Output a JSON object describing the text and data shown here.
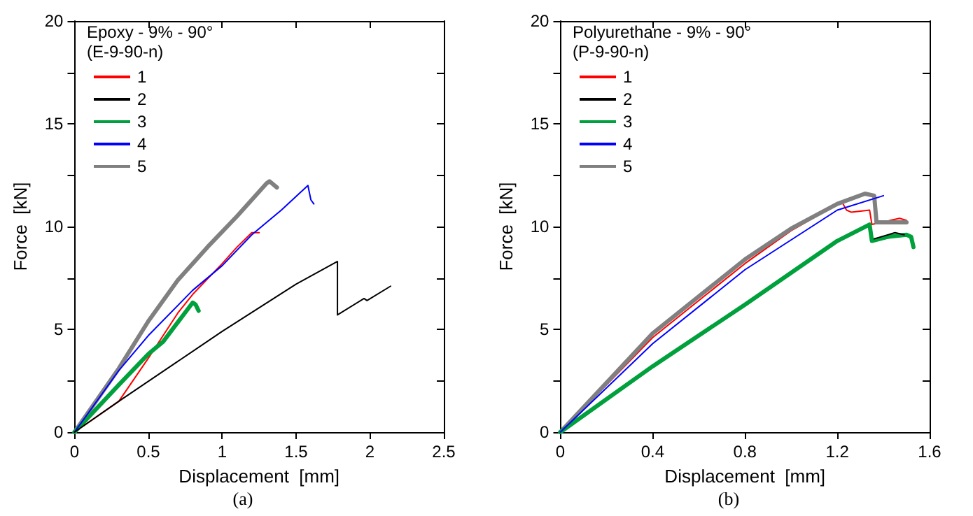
{
  "chart_data": [
    {
      "type": "line",
      "legend_title": "Epoxy - 9% - 90°\n(E-9-90-n)",
      "xlabel": "Displacement  [mm]",
      "ylabel": "Force  [kN]",
      "annotations": [
        "(a)"
      ],
      "legend": "top left",
      "grid": false,
      "marker": "none",
      "line_style": "solid",
      "xlim": [
        0,
        2.5
      ],
      "xticks": [
        0,
        0.5,
        1,
        1.5,
        2,
        2.5
      ],
      "ylim": [
        0,
        20
      ],
      "yticks": [
        0,
        {
          "value": 2.5,
          "label": null
        },
        5,
        {
          "value": 7.5,
          "label": null
        },
        10,
        {
          "value": 12.5,
          "label": null
        },
        15,
        {
          "value": 17.5,
          "label": null
        },
        20
      ],
      "series": [
        {
          "name": "1",
          "color": "#ff0000",
          "x": [
            0,
            0.3,
            0.5,
            0.7,
            0.8,
            1.0,
            1.1,
            1.2,
            1.25
          ],
          "values": [
            0,
            1.5,
            3.6,
            5.8,
            6.7,
            8.2,
            9.0,
            9.7,
            9.7
          ]
        },
        {
          "name": "2",
          "color": "#000000",
          "x": [
            0,
            0.3,
            1.0,
            1.5,
            1.78,
            1.78,
            1.96,
            1.98,
            2.14
          ],
          "values": [
            0,
            1.5,
            4.9,
            7.2,
            8.3,
            5.7,
            6.5,
            6.4,
            7.1
          ]
        },
        {
          "name": "3",
          "color": "#00a03c",
          "x": [
            0,
            0.3,
            0.5,
            0.6,
            0.8,
            0.82,
            0.84
          ],
          "values": [
            0,
            2.3,
            3.8,
            4.4,
            6.3,
            6.2,
            5.9
          ]
        },
        {
          "name": "4",
          "color": "#0000ff",
          "x": [
            0,
            0.3,
            0.5,
            0.8,
            1.0,
            1.2,
            1.4,
            1.58,
            1.6,
            1.62
          ],
          "values": [
            0,
            3.0,
            4.7,
            6.9,
            8.1,
            9.6,
            10.8,
            12.0,
            11.3,
            11.1
          ]
        },
        {
          "name": "5",
          "color": "#808080",
          "x": [
            0,
            0.3,
            0.5,
            0.7,
            0.9,
            1.1,
            1.3,
            1.32,
            1.37
          ],
          "values": [
            0,
            3.1,
            5.4,
            7.4,
            9.0,
            10.5,
            12.1,
            12.2,
            11.9
          ]
        }
      ]
    },
    {
      "type": "line",
      "legend_title": "Polyurethane - 9% - 90°\n(P-9-90-n)",
      "xlabel": "Displacement  [mm]",
      "ylabel": "Force  [kN]",
      "annotations": [
        "(b)"
      ],
      "legend": "top left",
      "grid": false,
      "marker": "none",
      "line_style": "solid",
      "xlim": [
        0,
        1.6
      ],
      "xticks": [
        0,
        0.4,
        0.8,
        1.2,
        1.6
      ],
      "ylim": [
        0,
        20
      ],
      "yticks": [
        0,
        {
          "value": 2.5,
          "label": null
        },
        5,
        {
          "value": 7.5,
          "label": null
        },
        10,
        {
          "value": 12.5,
          "label": null
        },
        15,
        {
          "value": 17.5,
          "label": null
        },
        20
      ],
      "series": [
        {
          "name": "1",
          "color": "#ff0000",
          "x": [
            0,
            0.4,
            0.8,
            1.0,
            1.22,
            1.24,
            1.26,
            1.34,
            1.35,
            1.47,
            1.5
          ],
          "values": [
            0,
            4.6,
            8.2,
            9.8,
            11.2,
            10.8,
            10.7,
            10.8,
            10.1,
            10.4,
            10.3
          ]
        },
        {
          "name": "2",
          "color": "#000000",
          "x": [
            1.36,
            1.45,
            1.49
          ],
          "values": [
            9.4,
            9.7,
            9.6
          ]
        },
        {
          "name": "3",
          "color": "#00a03c",
          "x": [
            0,
            0.4,
            0.8,
            1.2,
            1.34,
            1.35,
            1.42,
            1.5,
            1.52,
            1.53
          ],
          "values": [
            0,
            3.2,
            6.2,
            9.3,
            10.1,
            9.3,
            9.5,
            9.6,
            9.5,
            9.0
          ]
        },
        {
          "name": "4",
          "color": "#0000ff",
          "x": [
            0,
            0.4,
            0.8,
            1.2,
            1.4
          ],
          "values": [
            0,
            4.3,
            7.9,
            10.8,
            11.5
          ]
        },
        {
          "name": "5",
          "color": "#808080",
          "x": [
            0,
            0.4,
            0.8,
            1.0,
            1.2,
            1.32,
            1.36,
            1.37,
            1.5
          ],
          "values": [
            0,
            4.8,
            8.4,
            9.9,
            11.1,
            11.6,
            11.5,
            10.2,
            10.2
          ]
        }
      ]
    }
  ]
}
